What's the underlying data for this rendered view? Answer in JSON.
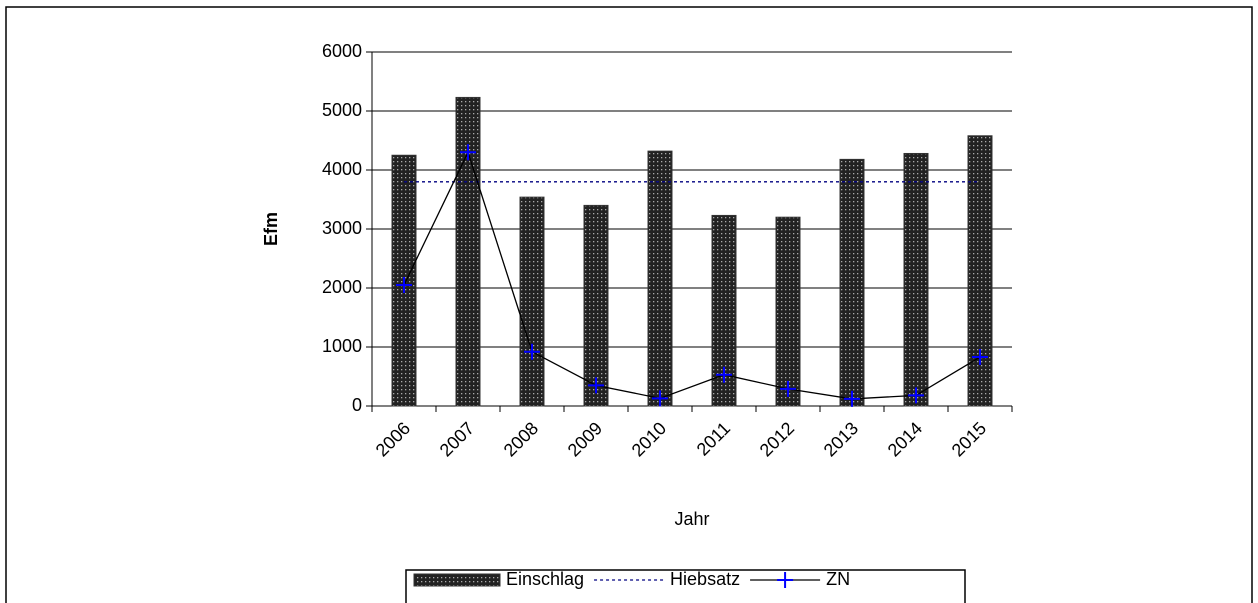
{
  "chart_data": {
    "type": "bar",
    "x_label": "Jahr",
    "y_label": "Efm",
    "categories": [
      "2006",
      "2007",
      "2008",
      "2009",
      "2010",
      "2011",
      "2012",
      "2013",
      "2014",
      "2015"
    ],
    "series": [
      {
        "name": "Einschlag",
        "type": "bar",
        "color": "#333333",
        "values": [
          4250,
          5230,
          3540,
          3400,
          4320,
          3230,
          3200,
          4180,
          4280,
          4580
        ]
      },
      {
        "name": "Hiebsatz",
        "type": "line",
        "dash": true,
        "color": "#000080",
        "values": [
          3800,
          3800,
          3800,
          3800,
          3800,
          3800,
          3800,
          3800,
          3800,
          3800
        ]
      },
      {
        "name": "ZN",
        "type": "line",
        "color": "#000000",
        "marker_color": "#0000ff",
        "values": [
          2050,
          4300,
          920,
          350,
          130,
          530,
          290,
          120,
          180,
          830
        ]
      }
    ],
    "ylim": [
      0,
      6000
    ],
    "yticks": [
      0,
      1000,
      2000,
      3000,
      4000,
      5000,
      6000
    ],
    "grid": true,
    "legend": "bottom"
  }
}
